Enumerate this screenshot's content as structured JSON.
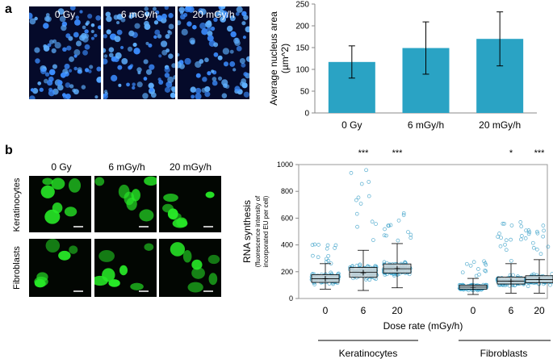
{
  "panel_a": {
    "letter": "a",
    "images": [
      {
        "label": "0 Gy"
      },
      {
        "label": "6 mGy/h"
      },
      {
        "label": "20 mGy/h"
      }
    ]
  },
  "panel_b": {
    "letter": "b",
    "column_titles": [
      "0 Gy",
      "6 mGy/h",
      "20 mGy/h"
    ],
    "row_labels": [
      "Keratinocytes",
      "Fibroblasts"
    ]
  },
  "chart_data": [
    {
      "type": "bar",
      "categories": [
        "0 Gy",
        "6 mGy/h",
        "20 mGy/h"
      ],
      "values": [
        117,
        149,
        170
      ],
      "errors": [
        37,
        60,
        62
      ],
      "title": "",
      "xlabel": "",
      "ylabel": "Average nucleus area",
      "ylabel_unit": "(µm^2)",
      "ylim": [
        0,
        250
      ],
      "yticks": [
        "0",
        "50",
        "100",
        "150",
        "200",
        "250"
      ],
      "bar_color": "#2aa3c4"
    },
    {
      "type": "box",
      "ylabel": "RNA synthesis",
      "ylabel_sub1": "(fluorescence intensity of",
      "ylabel_sub2": "incorporated EU per cell)",
      "xlabel": "Dose rate (mGy/h)",
      "ylim": [
        0,
        1000
      ],
      "yticks": [
        "0",
        "200",
        "400",
        "600",
        "800",
        "1000"
      ],
      "groups": [
        "Keratinocytes",
        "Fibroblasts"
      ],
      "point_color": "#3aa0c8",
      "box_color": "#d9d9d9",
      "series": [
        {
          "group": "Keratinocytes",
          "dose": "0",
          "q1": 120,
          "median": 148,
          "q3": 178,
          "mean": 150,
          "wlo": 70,
          "whi": 260,
          "max": 420,
          "sig": ""
        },
        {
          "group": "Keratinocytes",
          "dose": "6",
          "q1": 158,
          "median": 195,
          "q3": 232,
          "mean": 195,
          "wlo": 60,
          "whi": 360,
          "max": 1000,
          "sig": "***"
        },
        {
          "group": "Keratinocytes",
          "dose": "20",
          "q1": 190,
          "median": 222,
          "q3": 258,
          "mean": 225,
          "wlo": 80,
          "whi": 410,
          "max": 660,
          "sig": "***"
        },
        {
          "group": "Fibroblasts",
          "dose": "0",
          "q1": 70,
          "median": 85,
          "q3": 100,
          "mean": 88,
          "wlo": 30,
          "whi": 150,
          "max": 280,
          "sig": ""
        },
        {
          "group": "Fibroblasts",
          "dose": "6",
          "q1": 108,
          "median": 130,
          "q3": 160,
          "mean": 132,
          "wlo": 40,
          "whi": 260,
          "max": 580,
          "sig": "*"
        },
        {
          "group": "Fibroblasts",
          "dose": "20",
          "q1": 118,
          "median": 142,
          "q3": 170,
          "mean": 145,
          "wlo": 40,
          "whi": 290,
          "max": 610,
          "sig": "***"
        }
      ]
    }
  ]
}
